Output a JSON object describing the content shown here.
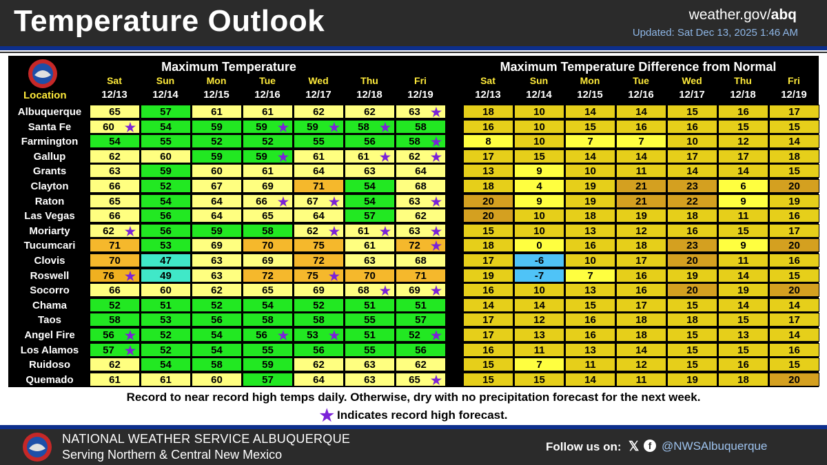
{
  "header": {
    "title": "Temperature Outlook",
    "site_prefix": "weather.gov/",
    "site_office": "abq",
    "updated": "Updated: Sat Dec 13, 2025 1:46 AM"
  },
  "table": {
    "left_title": "Maximum Temperature",
    "right_title": "Maximum Temperature Difference from Normal",
    "location_header": "Location",
    "days": [
      "Sat",
      "Sun",
      "Mon",
      "Tue",
      "Wed",
      "Thu",
      "Fri"
    ],
    "dates": [
      "12/13",
      "12/14",
      "12/15",
      "12/16",
      "12/17",
      "12/18",
      "12/19"
    ],
    "record_symbol": "★",
    "rows": [
      {
        "name": "Albuquerque",
        "max": [
          65,
          57,
          61,
          61,
          62,
          62,
          63
        ],
        "rec": [
          0,
          0,
          0,
          0,
          0,
          0,
          1
        ],
        "diff": [
          18,
          10,
          14,
          14,
          15,
          16,
          17
        ]
      },
      {
        "name": "Santa Fe",
        "max": [
          60,
          54,
          59,
          59,
          59,
          58,
          58
        ],
        "rec": [
          1,
          0,
          0,
          1,
          1,
          1,
          0
        ],
        "diff": [
          16,
          10,
          15,
          16,
          16,
          15,
          15
        ]
      },
      {
        "name": "Farmington",
        "max": [
          54,
          55,
          52,
          52,
          55,
          56,
          58
        ],
        "rec": [
          0,
          0,
          0,
          0,
          0,
          0,
          1
        ],
        "diff": [
          8,
          10,
          7,
          7,
          10,
          12,
          14
        ]
      },
      {
        "name": "Gallup",
        "max": [
          62,
          60,
          59,
          59,
          61,
          61,
          62
        ],
        "rec": [
          0,
          0,
          0,
          1,
          0,
          1,
          1
        ],
        "diff": [
          17,
          15,
          14,
          14,
          17,
          17,
          18
        ]
      },
      {
        "name": "Grants",
        "max": [
          63,
          59,
          60,
          61,
          64,
          63,
          64
        ],
        "rec": [
          0,
          0,
          0,
          0,
          0,
          0,
          0
        ],
        "diff": [
          13,
          9,
          10,
          11,
          14,
          14,
          15
        ]
      },
      {
        "name": "Clayton",
        "max": [
          66,
          52,
          67,
          69,
          71,
          54,
          68
        ],
        "rec": [
          0,
          0,
          0,
          0,
          0,
          0,
          0
        ],
        "diff": [
          18,
          4,
          19,
          21,
          23,
          6,
          20
        ]
      },
      {
        "name": "Raton",
        "max": [
          65,
          54,
          64,
          66,
          67,
          54,
          63
        ],
        "rec": [
          0,
          0,
          0,
          1,
          1,
          0,
          1
        ],
        "diff": [
          20,
          9,
          19,
          21,
          22,
          9,
          19
        ]
      },
      {
        "name": "Las Vegas",
        "max": [
          66,
          56,
          64,
          65,
          64,
          57,
          62
        ],
        "rec": [
          0,
          0,
          0,
          0,
          0,
          0,
          0
        ],
        "diff": [
          20,
          10,
          18,
          19,
          18,
          11,
          16
        ]
      },
      {
        "name": "Moriarty",
        "max": [
          62,
          56,
          59,
          58,
          62,
          61,
          63
        ],
        "rec": [
          1,
          0,
          0,
          0,
          1,
          1,
          1
        ],
        "diff": [
          15,
          10,
          13,
          12,
          16,
          15,
          17
        ]
      },
      {
        "name": "Tucumcari",
        "max": [
          71,
          53,
          69,
          70,
          75,
          61,
          72
        ],
        "rec": [
          0,
          0,
          0,
          0,
          0,
          0,
          1
        ],
        "diff": [
          18,
          0,
          16,
          18,
          23,
          9,
          20
        ]
      },
      {
        "name": "Clovis",
        "max": [
          70,
          47,
          63,
          69,
          72,
          63,
          68
        ],
        "rec": [
          0,
          0,
          0,
          0,
          0,
          0,
          0
        ],
        "diff": [
          17,
          -6,
          10,
          17,
          20,
          11,
          16
        ]
      },
      {
        "name": "Roswell",
        "max": [
          76,
          49,
          63,
          72,
          75,
          70,
          71
        ],
        "rec": [
          1,
          0,
          0,
          0,
          1,
          0,
          0
        ],
        "diff": [
          19,
          -7,
          7,
          16,
          19,
          14,
          15
        ]
      },
      {
        "name": "Socorro",
        "max": [
          66,
          60,
          62,
          65,
          69,
          68,
          69
        ],
        "rec": [
          0,
          0,
          0,
          0,
          0,
          1,
          1
        ],
        "diff": [
          16,
          10,
          13,
          16,
          20,
          19,
          20
        ]
      },
      {
        "name": "Chama",
        "max": [
          52,
          51,
          52,
          54,
          52,
          51,
          51
        ],
        "rec": [
          0,
          0,
          0,
          0,
          0,
          0,
          0
        ],
        "diff": [
          14,
          14,
          15,
          17,
          15,
          14,
          14
        ]
      },
      {
        "name": "Taos",
        "max": [
          58,
          53,
          56,
          58,
          58,
          55,
          57
        ],
        "rec": [
          0,
          0,
          0,
          0,
          0,
          0,
          0
        ],
        "diff": [
          17,
          12,
          16,
          18,
          18,
          15,
          17
        ]
      },
      {
        "name": "Angel Fire",
        "max": [
          56,
          52,
          54,
          56,
          53,
          51,
          52
        ],
        "rec": [
          1,
          0,
          0,
          1,
          1,
          0,
          1
        ],
        "diff": [
          17,
          13,
          16,
          18,
          15,
          13,
          14
        ]
      },
      {
        "name": "Los Alamos",
        "max": [
          57,
          52,
          54,
          55,
          56,
          55,
          56
        ],
        "rec": [
          1,
          0,
          0,
          0,
          0,
          0,
          0
        ],
        "diff": [
          16,
          11,
          13,
          14,
          15,
          15,
          16
        ]
      },
      {
        "name": "Ruidoso",
        "max": [
          62,
          54,
          58,
          59,
          62,
          63,
          62
        ],
        "rec": [
          0,
          0,
          0,
          0,
          0,
          0,
          0
        ],
        "diff": [
          15,
          7,
          11,
          12,
          15,
          16,
          15
        ]
      },
      {
        "name": "Quemado",
        "max": [
          61,
          61,
          60,
          57,
          64,
          63,
          65
        ],
        "rec": [
          0,
          0,
          0,
          0,
          0,
          0,
          1
        ],
        "diff": [
          15,
          15,
          14,
          11,
          19,
          18,
          20
        ]
      }
    ]
  },
  "notes": {
    "line1": "Record to near record high temps daily. Otherwise,  dry with no precipitation forecast for the next week.",
    "line2": "Indicates record high forecast."
  },
  "footer": {
    "office": "NATIONAL WEATHER SERVICE ALBUQUERQUE",
    "serving": "Serving Northern & Central New Mexico",
    "follow": "Follow us on:",
    "x_icon": "𝕏",
    "fb_icon": "f",
    "handle": "@NWSAlbuquerque"
  },
  "colors": {
    "brand_blue": "#0d2f8c",
    "record_star": "#7b22d8"
  }
}
